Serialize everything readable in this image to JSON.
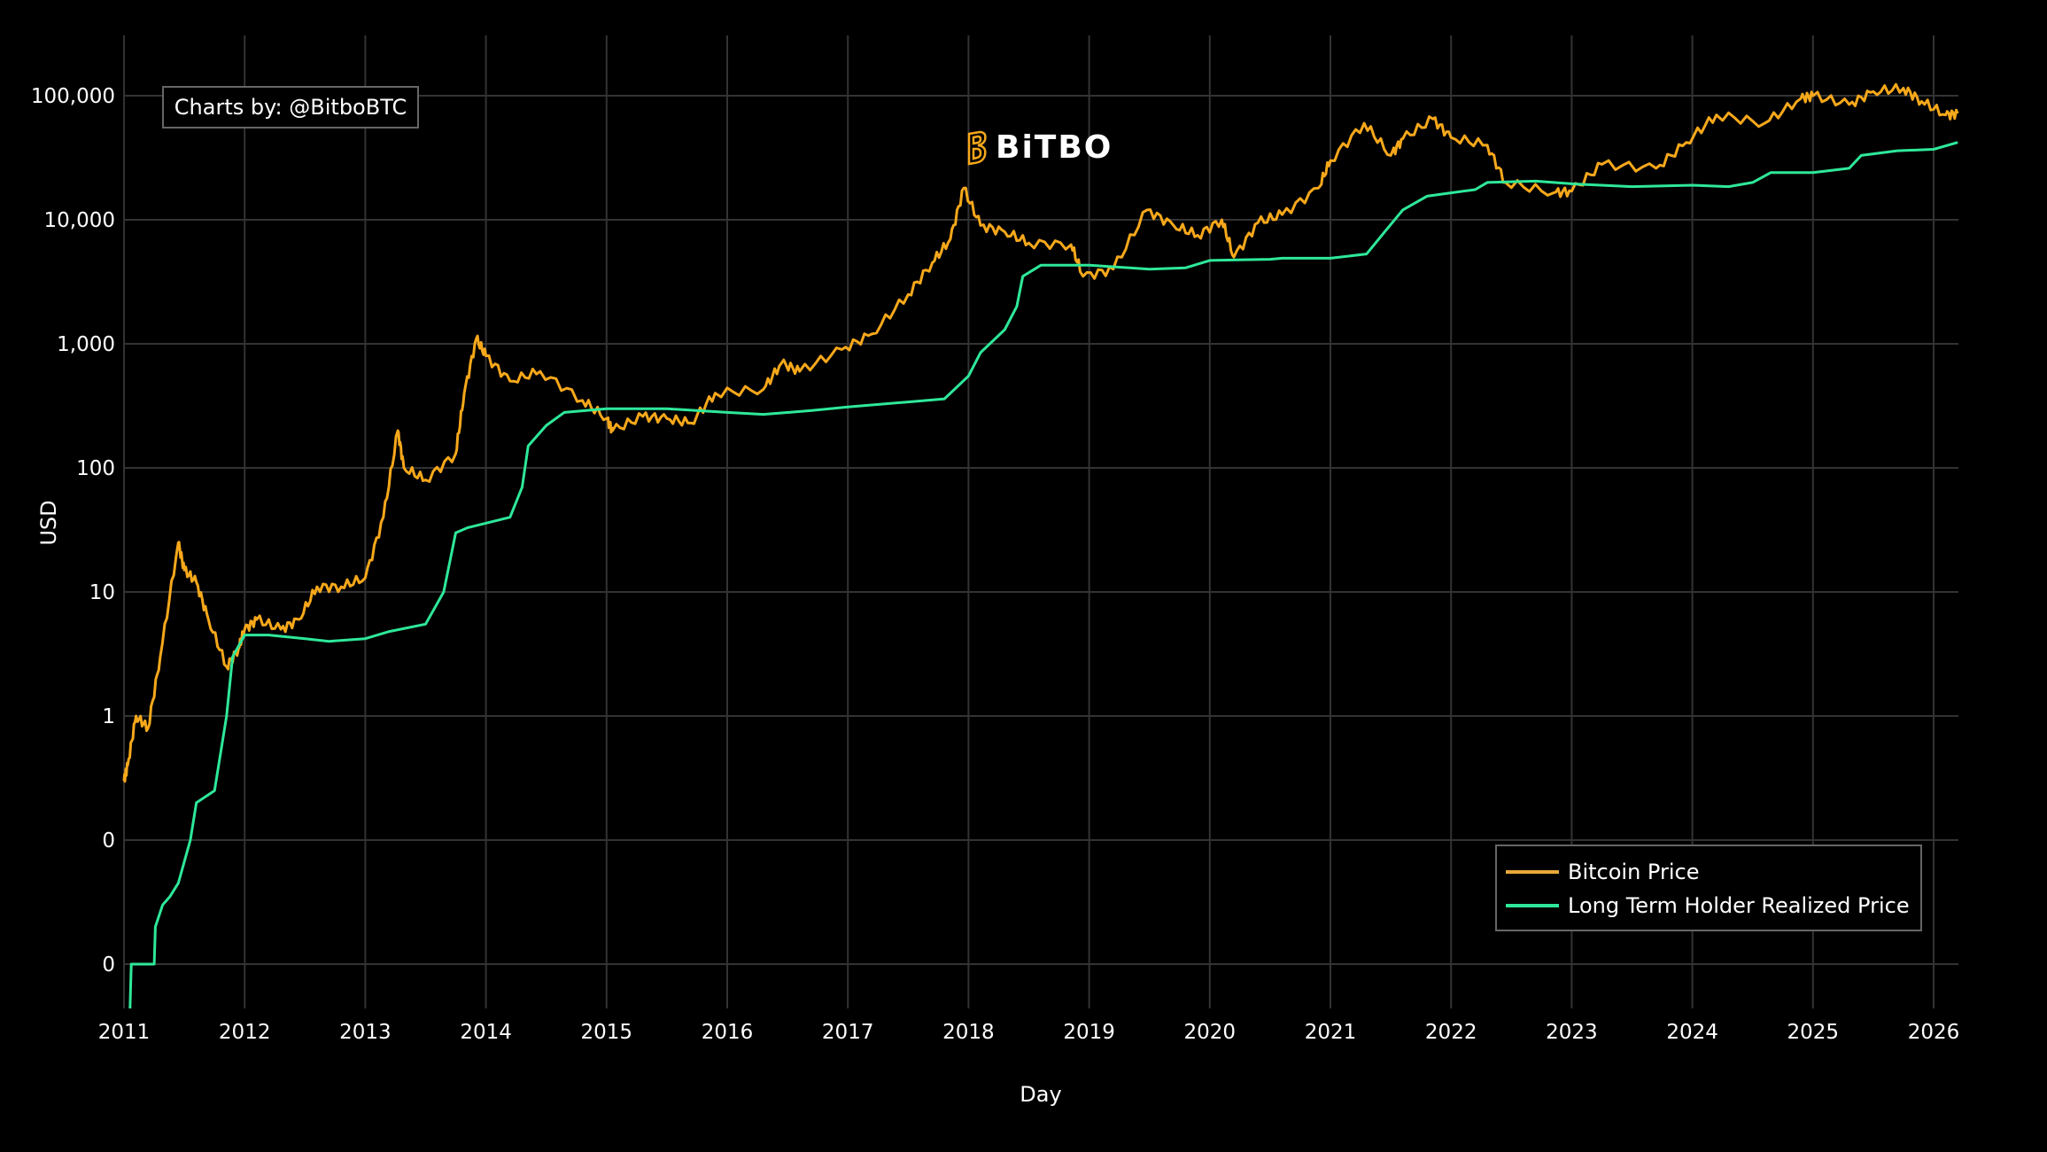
{
  "chart_data": {
    "type": "line",
    "title": "",
    "xlabel": "Day",
    "ylabel": "USD",
    "yscale": "log",
    "ylim": [
      0.01,
      100000
    ],
    "xlim": [
      2011,
      2026.2
    ],
    "x_ticks": [
      "2011",
      "2012",
      "2013",
      "2014",
      "2015",
      "2016",
      "2017",
      "2018",
      "2019",
      "2020",
      "2021",
      "2022",
      "2023",
      "2024",
      "2025",
      "2026"
    ],
    "y_ticks": [
      {
        "value": 100000,
        "label": "100,000"
      },
      {
        "value": 10000,
        "label": "10,000"
      },
      {
        "value": 1000,
        "label": "1,000"
      },
      {
        "value": 100,
        "label": "100"
      },
      {
        "value": 10,
        "label": "10"
      },
      {
        "value": 1,
        "label": "1"
      },
      {
        "value": 0.1,
        "label": "0"
      },
      {
        "value": 0.01,
        "label": "0"
      }
    ],
    "grid": true,
    "legend_position": "bottom-right",
    "series": [
      {
        "name": "Bitcoin Price",
        "color": "#f7a81b",
        "x": [
          2011.0,
          2011.03,
          2011.1,
          2011.2,
          2011.3,
          2011.45,
          2011.5,
          2011.6,
          2011.7,
          2011.85,
          2011.95,
          2012.0,
          2012.1,
          2012.3,
          2012.45,
          2012.6,
          2012.8,
          2013.0,
          2013.15,
          2013.27,
          2013.32,
          2013.5,
          2013.75,
          2013.82,
          2013.92,
          2014.0,
          2014.2,
          2014.45,
          2014.8,
          2015.0,
          2015.05,
          2015.3,
          2015.5,
          2015.7,
          2015.9,
          2016.3,
          2016.45,
          2016.6,
          2016.95,
          2017.2,
          2017.5,
          2017.7,
          2017.85,
          2017.96,
          2018.1,
          2018.3,
          2018.5,
          2018.85,
          2018.95,
          2019.2,
          2019.48,
          2019.7,
          2019.9,
          2020.1,
          2020.2,
          2020.4,
          2020.6,
          2020.9,
          2021.0,
          2021.28,
          2021.5,
          2021.6,
          2021.85,
          2022.0,
          2022.3,
          2022.45,
          2022.85,
          2023.0,
          2023.25,
          2023.7,
          2023.95,
          2024.2,
          2024.6,
          2024.9,
          2025.0,
          2025.3,
          2025.5,
          2025.75,
          2025.9,
          2026.1,
          2026.2
        ],
        "values": [
          0.3,
          0.4,
          1,
          0.8,
          3,
          25,
          15,
          12,
          6,
          2.5,
          3.5,
          5,
          6,
          5,
          6,
          11,
          11,
          13,
          40,
          200,
          100,
          80,
          130,
          400,
          1100,
          800,
          500,
          600,
          350,
          250,
          200,
          260,
          250,
          230,
          400,
          430,
          700,
          600,
          900,
          1200,
          2500,
          4500,
          7000,
          18000,
          9000,
          8000,
          6500,
          6300,
          3500,
          4000,
          12000,
          9000,
          7500,
          10000,
          5000,
          9500,
          11000,
          18000,
          30000,
          60000,
          33000,
          45000,
          65000,
          46000,
          40000,
          20000,
          16500,
          17000,
          28000,
          26000,
          42000,
          70000,
          60000,
          95000,
          100000,
          85000,
          108000,
          115000,
          90000,
          70000,
          72000
        ]
      },
      {
        "name": "Long Term Holder Realized Price",
        "color": "#2ee89a",
        "x": [
          2011.05,
          2011.06,
          2011.25,
          2011.26,
          2011.32,
          2011.38,
          2011.45,
          2011.55,
          2011.6,
          2011.75,
          2011.85,
          2011.9,
          2012.0,
          2012.2,
          2012.5,
          2012.7,
          2013.0,
          2013.2,
          2013.5,
          2013.65,
          2013.75,
          2013.85,
          2014.2,
          2014.3,
          2014.35,
          2014.5,
          2014.65,
          2015.0,
          2015.5,
          2016.0,
          2016.3,
          2016.7,
          2017.0,
          2017.5,
          2017.8,
          2018.0,
          2018.1,
          2018.3,
          2018.4,
          2018.45,
          2018.6,
          2019.0,
          2019.5,
          2019.8,
          2020.0,
          2020.5,
          2020.6,
          2021.0,
          2021.3,
          2021.45,
          2021.6,
          2021.8,
          2022.0,
          2022.2,
          2022.3,
          2022.7,
          2023.0,
          2023.5,
          2024.0,
          2024.3,
          2024.5,
          2024.65,
          2025.0,
          2025.3,
          2025.4,
          2025.7,
          2026.0,
          2026.2
        ],
        "values": [
          0.003,
          0.01,
          0.01,
          0.02,
          0.03,
          0.035,
          0.045,
          0.1,
          0.2,
          0.25,
          1,
          3,
          4.5,
          4.5,
          4.2,
          4,
          4.2,
          4.8,
          5.5,
          10,
          30,
          33,
          40,
          70,
          150,
          220,
          280,
          300,
          300,
          280,
          270,
          290,
          310,
          340,
          360,
          550,
          850,
          1300,
          2000,
          3500,
          4300,
          4300,
          4000,
          4100,
          4700,
          4800,
          4900,
          4900,
          5300,
          8000,
          12000,
          15500,
          16500,
          17500,
          20000,
          20500,
          19500,
          18500,
          19000,
          18500,
          20000,
          24000,
          24000,
          26000,
          33000,
          36000,
          37000,
          42000
        ]
      }
    ]
  },
  "credit": "Charts by: @BitboBTC",
  "logo_text": "BiTBO"
}
